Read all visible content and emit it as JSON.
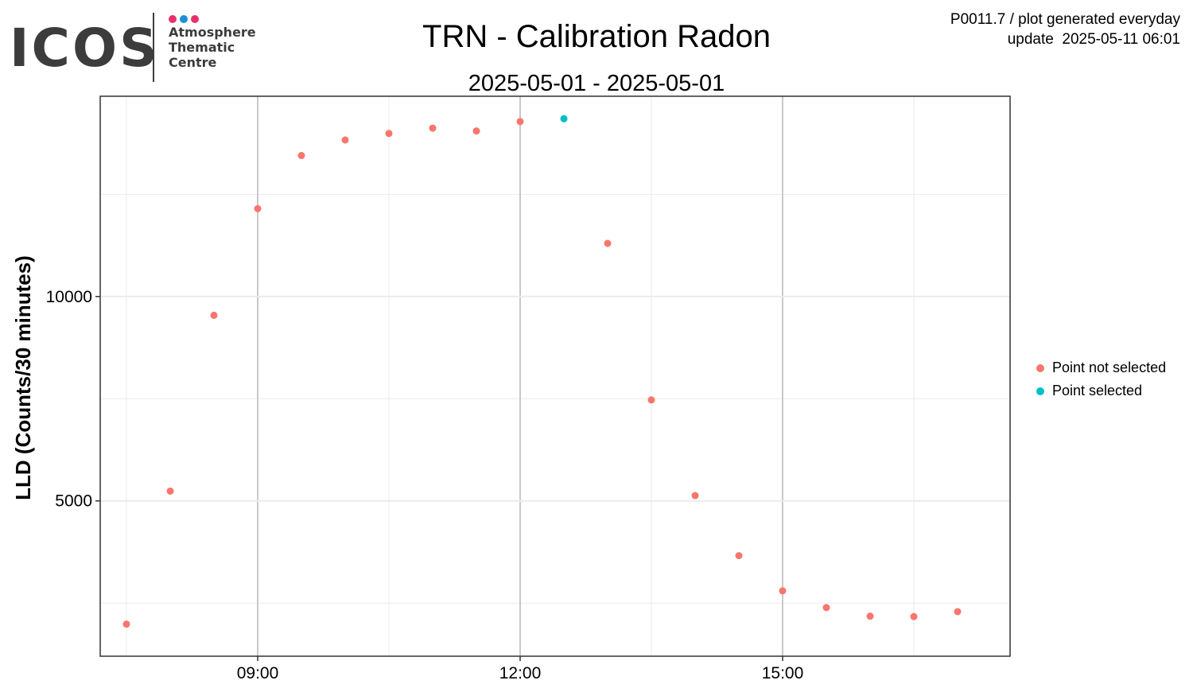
{
  "logo": {
    "wordmark": "ICOS",
    "lines": [
      "Atmosphere",
      "Thematic",
      "Centre"
    ],
    "dot_colors": [
      "#e6306e",
      "#1b8fd8",
      "#e6306e"
    ]
  },
  "header": {
    "title": "TRN - Calibration Radon",
    "subtitle": "2025-05-01 - 2025-05-01",
    "meta_line_1": "P0011.7 / plot generated everyday",
    "meta_line_2": "update  2025-05-11 06:01"
  },
  "chart_data": {
    "type": "scatter",
    "title": "TRN - Calibration Radon",
    "subtitle": "2025-05-01 - 2025-05-01",
    "xlabel": "",
    "ylabel": "LLD (Counts/30 minutes)",
    "xlim": [
      "07:12",
      "17:36"
    ],
    "ylim": [
      1200,
      14900
    ],
    "x_ticks": [
      "09:00",
      "12:00",
      "15:00"
    ],
    "y_ticks": [
      5000,
      10000
    ],
    "grid": true,
    "legend_position": "right",
    "series": [
      {
        "name": "Point not selected",
        "color": "#F8766D",
        "points": [
          {
            "x": "07:30",
            "y": 1985
          },
          {
            "x": "08:00",
            "y": 5240
          },
          {
            "x": "08:30",
            "y": 9540
          },
          {
            "x": "09:00",
            "y": 12150
          },
          {
            "x": "09:30",
            "y": 13450
          },
          {
            "x": "10:00",
            "y": 13830
          },
          {
            "x": "10:30",
            "y": 13990
          },
          {
            "x": "11:00",
            "y": 14120
          },
          {
            "x": "11:30",
            "y": 14050
          },
          {
            "x": "12:00",
            "y": 14280
          },
          {
            "x": "13:00",
            "y": 11300
          },
          {
            "x": "13:30",
            "y": 7470
          },
          {
            "x": "14:00",
            "y": 5130
          },
          {
            "x": "14:30",
            "y": 3660
          },
          {
            "x": "15:00",
            "y": 2800
          },
          {
            "x": "15:30",
            "y": 2390
          },
          {
            "x": "16:00",
            "y": 2180
          },
          {
            "x": "16:30",
            "y": 2170
          },
          {
            "x": "17:00",
            "y": 2290
          }
        ]
      },
      {
        "name": "Point selected",
        "color": "#00BFC4",
        "points": [
          {
            "x": "12:30",
            "y": 14350
          }
        ]
      }
    ]
  }
}
